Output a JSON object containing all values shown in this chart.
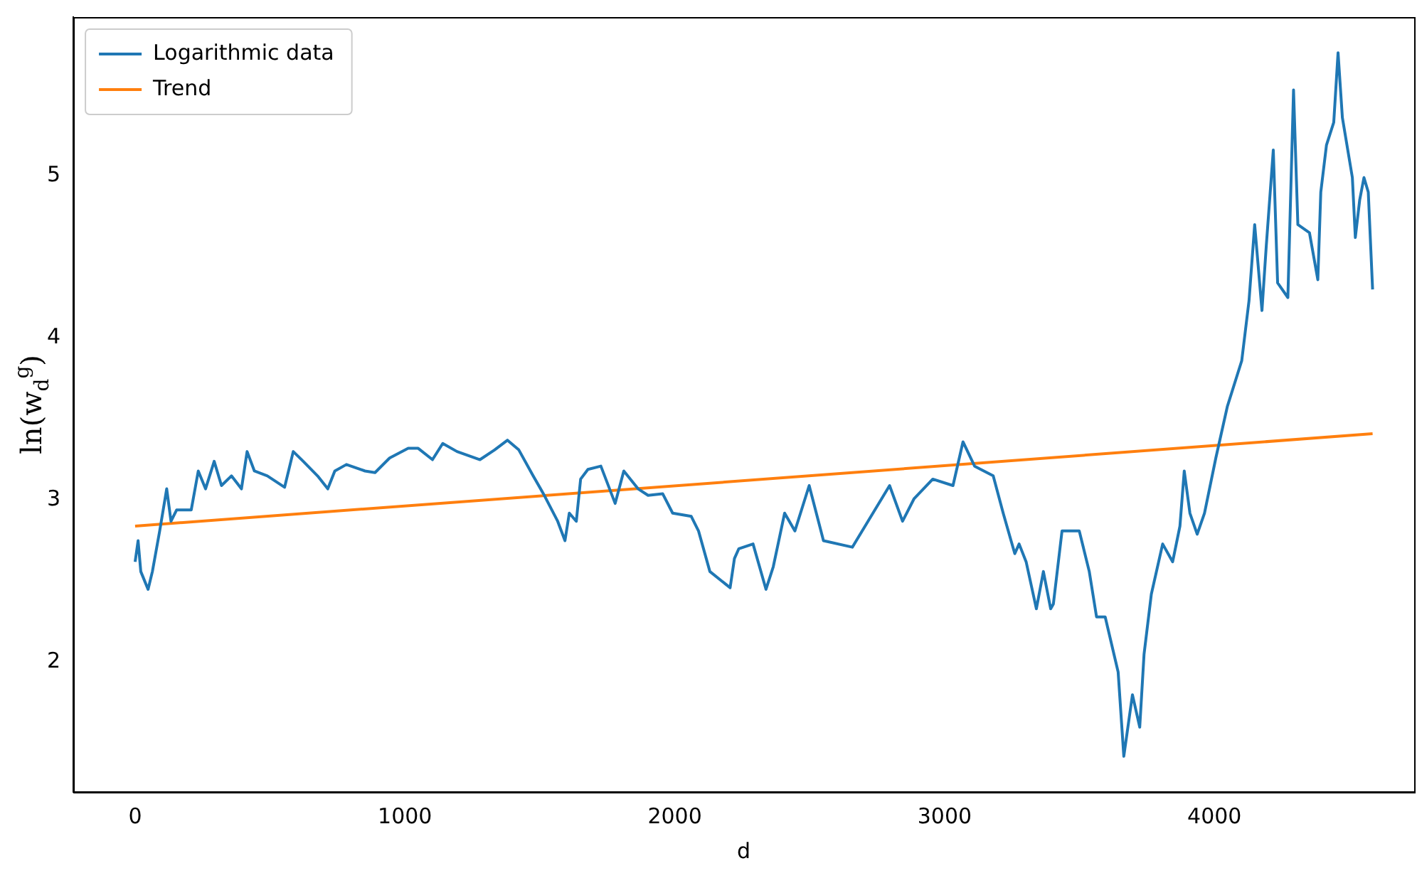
{
  "chart_data": {
    "type": "line",
    "xlabel": "d",
    "ylabel": "ln(w$_{d}$$^{g}$)",
    "xlim": [
      -229,
      4740
    ],
    "ylim": [
      1.2,
      5.98
    ],
    "xticks": [
      0,
      1000,
      2000,
      3000,
      4000
    ],
    "yticks": [
      2,
      3,
      4,
      5
    ],
    "grid": false,
    "legend": "top left",
    "marker": "none",
    "line_style": "solid",
    "series": [
      {
        "name": "Logarithmic data",
        "color": "#1f77b4",
        "x": [
          0,
          11,
          21,
          48,
          64,
          91,
          117,
          133,
          154,
          208,
          234,
          261,
          293,
          320,
          357,
          394,
          415,
          442,
          490,
          554,
          586,
          623,
          676,
          714,
          740,
          783,
          852,
          889,
          943,
          1012,
          1049,
          1102,
          1140,
          1193,
          1278,
          1332,
          1380,
          1422,
          1475,
          1513,
          1566,
          1593,
          1609,
          1635,
          1651,
          1678,
          1726,
          1779,
          1811,
          1864,
          1901,
          1955,
          1992,
          2061,
          2088,
          2130,
          2205,
          2221,
          2237,
          2290,
          2338,
          2365,
          2407,
          2445,
          2498,
          2551,
          2658,
          2716,
          2796,
          2844,
          2887,
          2956,
          3031,
          3068,
          3111,
          3180,
          3217,
          3260,
          3276,
          3302,
          3340,
          3366,
          3393,
          3403,
          3435,
          3499,
          3536,
          3563,
          3595,
          3643,
          3664,
          3696,
          3723,
          3739,
          3766,
          3808,
          3845,
          3872,
          3888,
          3909,
          3936,
          3963,
          4005,
          4048,
          4101,
          4128,
          4149,
          4176,
          4192,
          4218,
          4234,
          4272,
          4293,
          4309,
          4352,
          4383,
          4394,
          4415,
          4442,
          4458,
          4474,
          4511,
          4522,
          4538,
          4554,
          4570,
          4586
        ],
        "values": [
          2.62,
          2.75,
          2.56,
          2.45,
          2.56,
          2.81,
          3.07,
          2.87,
          2.94,
          2.94,
          3.18,
          3.07,
          3.24,
          3.09,
          3.15,
          3.07,
          3.3,
          3.18,
          3.15,
          3.08,
          3.3,
          3.24,
          3.15,
          3.07,
          3.18,
          3.22,
          3.18,
          3.17,
          3.26,
          3.32,
          3.32,
          3.25,
          3.35,
          3.3,
          3.25,
          3.31,
          3.37,
          3.31,
          3.15,
          3.04,
          2.87,
          2.75,
          2.92,
          2.87,
          3.13,
          3.19,
          3.21,
          2.98,
          3.18,
          3.07,
          3.03,
          3.04,
          2.92,
          2.9,
          2.81,
          2.56,
          2.46,
          2.64,
          2.7,
          2.73,
          2.45,
          2.59,
          2.92,
          2.81,
          3.09,
          2.75,
          2.71,
          2.87,
          3.09,
          2.87,
          3.01,
          3.13,
          3.09,
          3.36,
          3.21,
          3.15,
          2.92,
          2.67,
          2.73,
          2.62,
          2.33,
          2.56,
          2.33,
          2.36,
          2.81,
          2.81,
          2.56,
          2.28,
          2.28,
          1.94,
          1.42,
          1.8,
          1.6,
          2.05,
          2.42,
          2.73,
          2.62,
          2.84,
          3.18,
          2.92,
          2.79,
          2.92,
          3.26,
          3.58,
          3.86,
          4.23,
          4.7,
          4.17,
          4.57,
          5.16,
          4.34,
          4.25,
          5.53,
          4.7,
          4.65,
          4.36,
          4.9,
          5.19,
          5.33,
          5.76,
          5.36,
          4.99,
          4.62,
          4.85,
          4.99,
          4.9,
          4.3
        ]
      },
      {
        "name": "Trend",
        "type": "line",
        "color": "#ff7f0e",
        "x": [
          0,
          4586
        ],
        "values": [
          2.84,
          3.41
        ]
      }
    ]
  }
}
